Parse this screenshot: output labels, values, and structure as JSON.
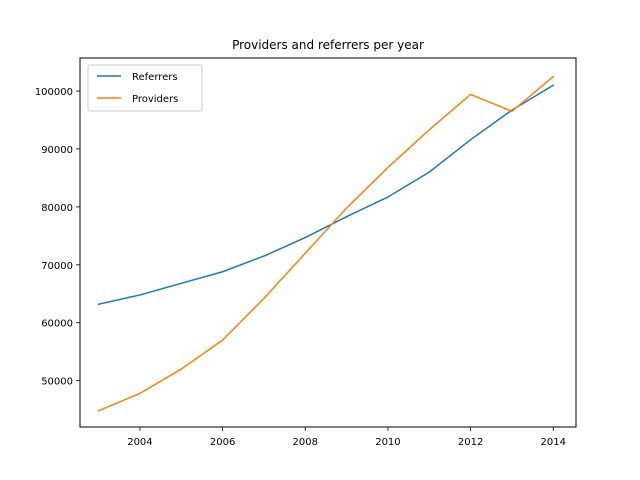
{
  "chart_data": {
    "type": "line",
    "title": "Providers and referrers per year",
    "xlabel": "",
    "ylabel": "",
    "x": [
      2003,
      2004,
      2005,
      2006,
      2007,
      2008,
      2009,
      2010,
      2011,
      2012,
      2013,
      2014
    ],
    "series": [
      {
        "name": "Referrers",
        "color": "#1f77b4",
        "values": [
          63200,
          64800,
          66800,
          68800,
          71500,
          74700,
          78300,
          81700,
          86000,
          91600,
          96700,
          101000
        ]
      },
      {
        "name": "Providers",
        "color": "#ff7f0e",
        "values": [
          44800,
          47800,
          52000,
          57000,
          64200,
          72000,
          79800,
          86800,
          93300,
          99400,
          96500,
          102500
        ]
      }
    ],
    "xlim": [
      2002.55,
      2014.55
    ],
    "ylim": [
      42000,
      105700
    ],
    "xticks": [
      2004,
      2006,
      2008,
      2010,
      2012,
      2014
    ],
    "yticks": [
      50000,
      60000,
      70000,
      80000,
      90000,
      100000
    ],
    "grid": false,
    "legend_position": "top-left"
  }
}
